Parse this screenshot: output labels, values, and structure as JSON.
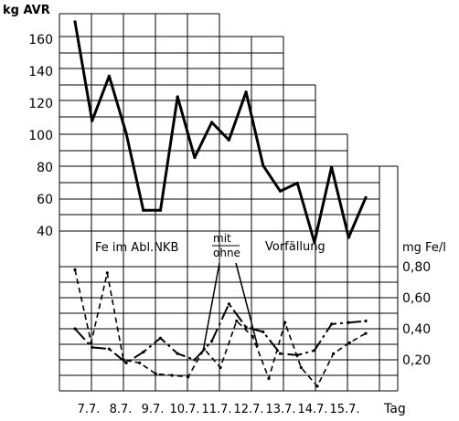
{
  "chart_data": {
    "type": "line",
    "top_axis_label": "kg AVR",
    "top_y_ticks": [
      "160",
      "140",
      "120",
      "100",
      "80",
      "60",
      "40"
    ],
    "bottom_axis_label": "mg Fe/l",
    "bottom_y_ticks": [
      "0,80",
      "0,60",
      "0,40",
      "0,20"
    ],
    "x_tick_labels": [
      "7.7.",
      "8.7.",
      "9.7.",
      "10.7.",
      "11.7.",
      "12.7.",
      "13.7.",
      "14.7.",
      "15.7."
    ],
    "x_axis_label": "Tag",
    "section_label": "Fe im Abl.NKB",
    "label_mit": "mit",
    "label_ohne": "ohne",
    "label_vorfallung": "Vorfällung",
    "top_series_values": [
      171,
      109,
      137,
      101,
      53,
      53,
      124,
      86,
      108,
      97,
      127,
      81,
      65,
      70,
      33,
      80,
      36,
      61
    ],
    "fe_mit_values": [
      0.4,
      0.28,
      0.27,
      0.18,
      0.25,
      0.34,
      0.24,
      0.2,
      0.32,
      0.56,
      0.41,
      0.38,
      0.24,
      0.23,
      0.26,
      0.43,
      0.44,
      0.45
    ],
    "fe_ohne_values": [
      0.78,
      0.31,
      0.76,
      0.2,
      0.18,
      0.11,
      0.1,
      0.09,
      0.27,
      0.15,
      0.45,
      0.35,
      0.08,
      0.44,
      0.15,
      0.03,
      0.24,
      0.31,
      0.37
    ]
  }
}
